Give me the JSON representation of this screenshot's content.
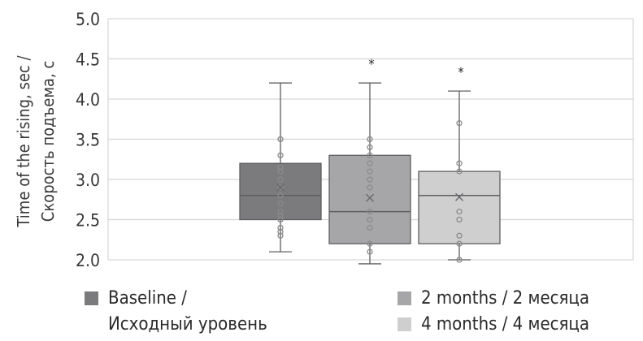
{
  "chart_data": {
    "type": "box",
    "ylabel_line1": "Time of the rising, sec /",
    "ylabel_line2": "Скорость подъема, с",
    "ylim": [
      2.0,
      5.0
    ],
    "yticks": [
      "2.0",
      "2.5",
      "3.0",
      "3.5",
      "4.0",
      "4.5",
      "5.0"
    ],
    "grid": true,
    "series": [
      {
        "name": "Baseline / Исходный уровень",
        "color": "#7b7b7d",
        "min": 2.1,
        "q1": 2.5,
        "median": 2.8,
        "q3": 3.2,
        "max": 4.2,
        "mean": 2.9,
        "points": [
          2.3,
          2.35,
          2.4,
          2.5,
          2.55,
          2.6,
          2.7,
          2.8,
          2.9,
          3.0,
          3.1,
          3.15,
          3.3,
          3.5
        ],
        "significance": ""
      },
      {
        "name": "2 months / 2 месяца",
        "color": "#a6a6a8",
        "min": 1.95,
        "q1": 2.2,
        "median": 2.6,
        "q3": 3.3,
        "max": 4.2,
        "mean": 2.77,
        "points": [
          2.1,
          2.2,
          2.4,
          2.5,
          2.6,
          2.9,
          3.0,
          3.1,
          3.2,
          3.3,
          3.4,
          3.5
        ],
        "significance": "*"
      },
      {
        "name": "4 months / 4 месяца",
        "color": "#cfcfd0",
        "min": 2.0,
        "q1": 2.2,
        "median": 2.8,
        "q3": 3.1,
        "max": 4.1,
        "mean": 2.78,
        "points": [
          2.0,
          2.2,
          2.3,
          2.5,
          2.6,
          3.1,
          3.2,
          3.7
        ],
        "significance": "*"
      }
    ]
  },
  "legend": {
    "baseline_line1": "Baseline /",
    "baseline_line2": "Исходный уровень",
    "m2": "2 months / 2 месяца",
    "m4": "4 months / 4 месяца"
  }
}
